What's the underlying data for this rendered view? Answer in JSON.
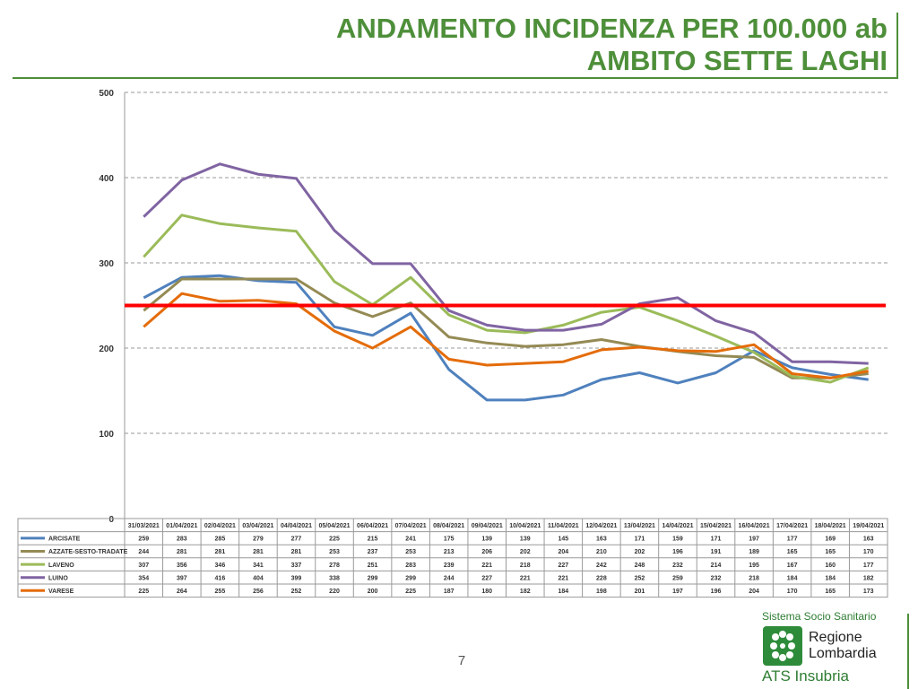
{
  "header": {
    "title_line1": "ANDAMENTO INCIDENZA PER 100.000 ab",
    "title_line2": "AMBITO SETTE LAGHI"
  },
  "chart_data": {
    "type": "line",
    "title": "ANDAMENTO INCIDENZA PER 100.000 ab - AMBITO SETTE LAGHI",
    "xlabel": "",
    "ylabel": "",
    "ylim": [
      0,
      500
    ],
    "yticks": [
      0,
      100,
      200,
      300,
      400,
      500
    ],
    "grid": true,
    "legend": "data-table",
    "categories": [
      "31/03/2021",
      "01/04/2021",
      "02/04/2021",
      "03/04/2021",
      "04/04/2021",
      "05/04/2021",
      "06/04/2021",
      "07/04/2021",
      "08/04/2021",
      "09/04/2021",
      "10/04/2021",
      "11/04/2021",
      "12/04/2021",
      "13/04/2021",
      "14/04/2021",
      "15/04/2021",
      "16/04/2021",
      "17/04/2021",
      "18/04/2021",
      "19/04/2021"
    ],
    "series": [
      {
        "name": "ARCISATE",
        "color": "#4f81bd",
        "values": [
          259,
          283,
          285,
          279,
          277,
          225,
          215,
          241,
          175,
          139,
          139,
          145,
          163,
          171,
          159,
          171,
          197,
          177,
          169,
          163
        ]
      },
      {
        "name": "AZZATE-SESTO-TRADATE",
        "color": "#948a54",
        "values": [
          244,
          281,
          281,
          281,
          281,
          253,
          237,
          253,
          213,
          206,
          202,
          204,
          210,
          202,
          196,
          191,
          189,
          165,
          165,
          170
        ]
      },
      {
        "name": "LAVENO",
        "color": "#9bbb59",
        "values": [
          307,
          356,
          346,
          341,
          337,
          278,
          251,
          283,
          239,
          221,
          218,
          227,
          242,
          248,
          232,
          214,
          195,
          167,
          160,
          177
        ]
      },
      {
        "name": "LUINO",
        "color": "#8064a2",
        "values": [
          354,
          397,
          416,
          404,
          399,
          338,
          299,
          299,
          244,
          227,
          221,
          221,
          228,
          252,
          259,
          232,
          218,
          184,
          184,
          182
        ]
      },
      {
        "name": "VARESE",
        "color": "#e46c0a",
        "values": [
          225,
          264,
          255,
          256,
          252,
          220,
          200,
          225,
          187,
          180,
          182,
          184,
          198,
          201,
          197,
          196,
          204,
          170,
          165,
          173
        ]
      }
    ],
    "threshold": {
      "value": 250,
      "color": "#ff0000"
    }
  },
  "footer": {
    "page_number": "7",
    "logo_tagline": "Sistema Socio Sanitario",
    "logo_name_line1": "Regione",
    "logo_name_line2": "Lombardia",
    "logo_ats": "ATS Insubria"
  }
}
